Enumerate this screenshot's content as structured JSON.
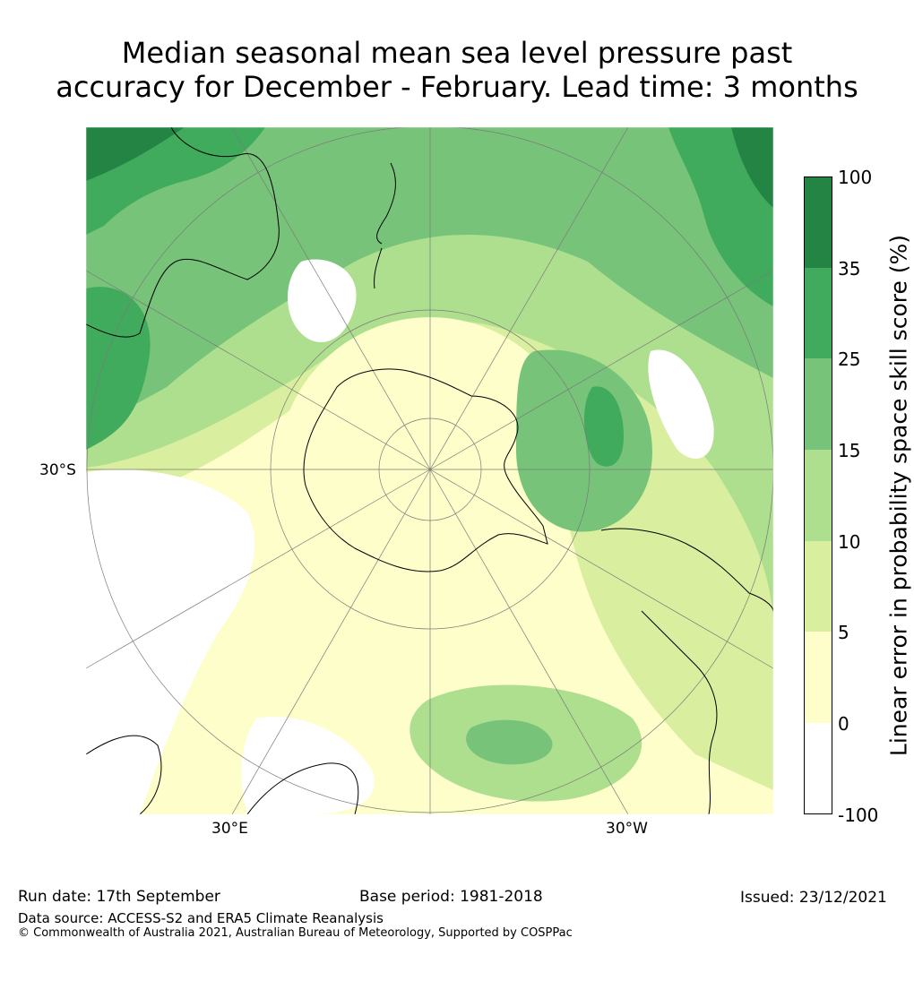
{
  "title_line1": "Median seasonal mean sea level pressure past",
  "title_line2": "accuracy for December - February. Lead time: 3 months",
  "map": {
    "projection": "south-polar-stereographic",
    "lat_label": "30°S",
    "lon_labels": [
      "30°E",
      "30°W"
    ]
  },
  "colorbar": {
    "title": "Linear error in probability space skill score (%)",
    "ticks": [
      "100",
      "35",
      "25",
      "15",
      "10",
      "5",
      "0",
      "-100"
    ],
    "bins": [
      {
        "min": -100,
        "max": 0,
        "color": "#ffffff"
      },
      {
        "min": 0,
        "max": 5,
        "color": "#fefecb"
      },
      {
        "min": 5,
        "max": 10,
        "color": "#d9ef9f"
      },
      {
        "min": 10,
        "max": 15,
        "color": "#aedf8e"
      },
      {
        "min": 15,
        "max": 25,
        "color": "#77c379"
      },
      {
        "min": 25,
        "max": 35,
        "color": "#41ab5d"
      },
      {
        "min": 35,
        "max": 100,
        "color": "#238443"
      }
    ]
  },
  "footer": {
    "run_date": "Run date: 17th September",
    "base_period": "Base period: 1981-2018",
    "issued": "Issued: 23/12/2021",
    "data_source": "Data source: ACCESS-S2 and ERA5 Climate Reanalysis",
    "copyright": "© Commonwealth of Australia 2021, Australian Bureau of Meteorology, Supported by COSPPac"
  }
}
